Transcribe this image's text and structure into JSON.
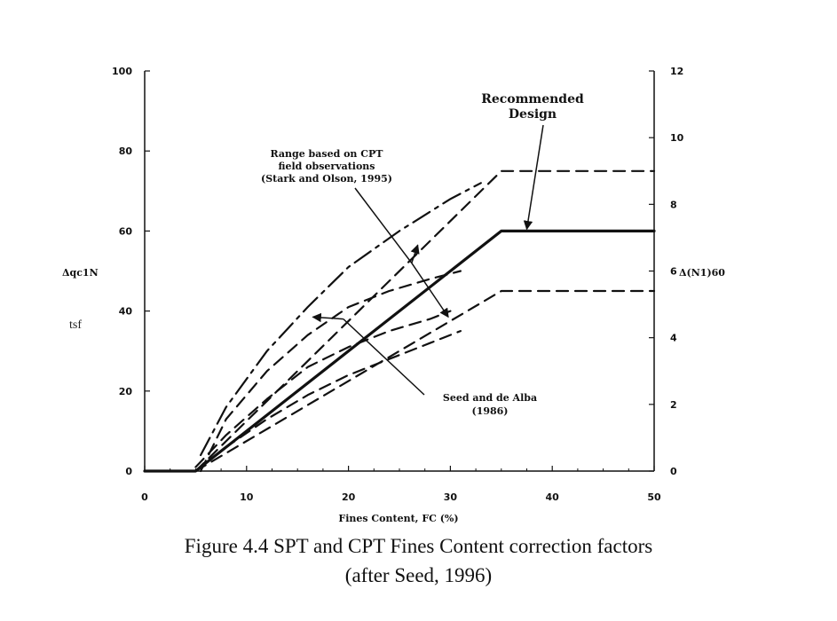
{
  "chart_data": {
    "type": "line",
    "title": "",
    "xlabel": "Fines Content, FC (%)",
    "ylabel_left": "Δqc1N",
    "ylabel_left_units": "tsf",
    "ylabel_right": "Δ(N1)60",
    "xlim": [
      0,
      50
    ],
    "ylim_left": [
      0,
      100
    ],
    "ylim_right": [
      0,
      12
    ],
    "x_ticks": [
      0,
      10,
      20,
      30,
      40,
      50
    ],
    "y_left_ticks": [
      0,
      20,
      40,
      60,
      80,
      100
    ],
    "y_right_ticks": [
      0,
      2,
      4,
      6,
      8,
      10,
      12
    ],
    "grid": false,
    "series": [
      {
        "name": "Recommended Design",
        "style": "solid-thick",
        "x": [
          0,
          5,
          35,
          50
        ],
        "y": [
          0,
          0,
          60,
          60
        ]
      },
      {
        "style": "dashed",
        "x": [
          5,
          35,
          50
        ],
        "y": [
          0,
          75,
          75
        ]
      },
      {
        "style": "dashed",
        "x": [
          5,
          35,
          50
        ],
        "y": [
          0,
          45,
          45
        ]
      },
      {
        "style": "dash-dot",
        "x": [
          5.5,
          8,
          12,
          16,
          20,
          25,
          30,
          33
        ],
        "y": [
          4,
          16,
          30,
          41,
          51,
          60,
          68,
          72
        ]
      },
      {
        "style": "dashed",
        "x": [
          5.5,
          8,
          12,
          16,
          20,
          24,
          28,
          31
        ],
        "y": [
          0,
          13,
          25,
          34,
          41,
          45,
          48,
          50
        ]
      },
      {
        "style": "dashed",
        "x": [
          5,
          8,
          12,
          16,
          20,
          24,
          28,
          30
        ],
        "y": [
          1,
          9,
          18,
          26,
          31,
          35,
          38,
          40
        ]
      },
      {
        "style": "dashed",
        "x": [
          5,
          8,
          12,
          16,
          20,
          24,
          28,
          31
        ],
        "y": [
          0,
          6,
          13,
          19,
          24,
          28,
          32,
          35
        ]
      }
    ],
    "annotations": {
      "recommended": [
        "Recommended",
        "Design"
      ],
      "cpt_range": [
        "Range based on CPT",
        "field observations",
        "(Stark and Olson, 1995)"
      ],
      "seed_alba": [
        "Seed and de Alba",
        "(1986)"
      ]
    }
  },
  "caption": {
    "line1": "Figure 4.4  SPT and CPT Fines Content correction factors",
    "line2": "(after Seed, 1996)"
  }
}
